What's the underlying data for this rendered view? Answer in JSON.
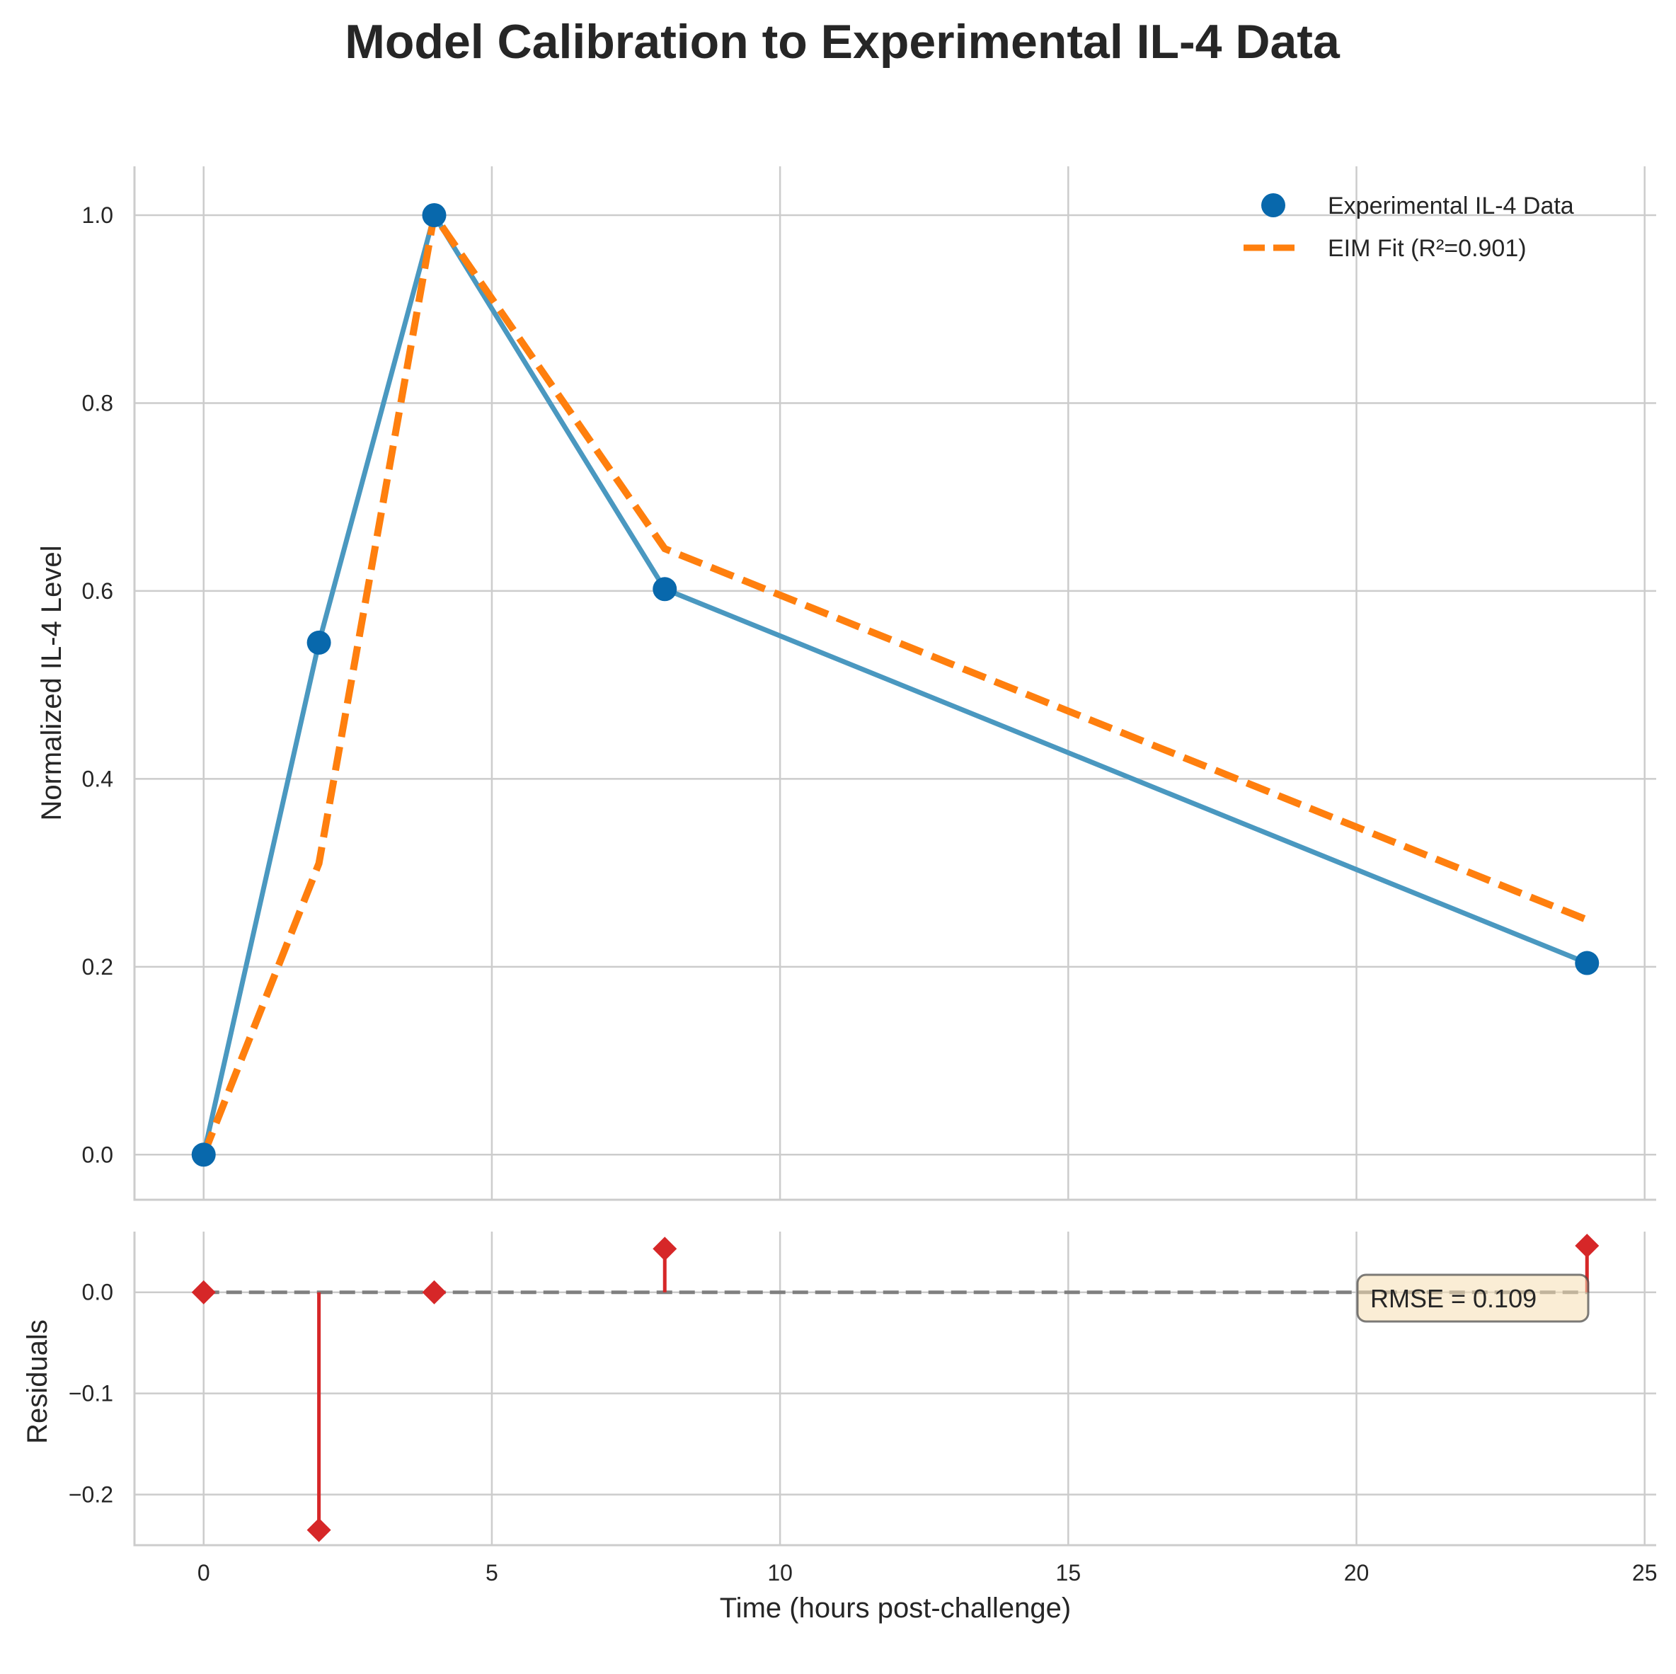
{
  "title": "Model Calibration to Experimental IL-4 Data",
  "colors": {
    "data": "#0868ac",
    "data_line": "#4a98c0",
    "fit": "#ff7f0e",
    "residual": "#d62728",
    "zero_line": "#808080",
    "rmse_box_fill": "#f5deb3",
    "grid": "#cccccc"
  },
  "chart_data": [
    {
      "type": "line",
      "panel": "main",
      "xlabel": "",
      "ylabel": "Normalized IL-4 Level",
      "xlim": [
        -1.2,
        25.2
      ],
      "ylim": [
        -0.048,
        1.052
      ],
      "xticks": [
        0,
        5,
        10,
        15,
        20,
        25
      ],
      "yticks": [
        0.0,
        0.2,
        0.4,
        0.6,
        0.8,
        1.0
      ],
      "ytick_labels": [
        "0.0",
        "0.2",
        "0.4",
        "0.6",
        "0.8",
        "1.0"
      ],
      "grid": true,
      "legend": "top-right",
      "series": [
        {
          "name": "Experimental IL-4 Data",
          "style": "line-markers",
          "x": [
            0,
            2,
            4,
            8,
            24
          ],
          "values": [
            0.0,
            0.545,
            1.0,
            0.602,
            0.204
          ]
        },
        {
          "name": "EIM Fit (R²=0.901)",
          "style": "dashed",
          "x": [
            0,
            2,
            4,
            8,
            24
          ],
          "values": [
            0.0,
            0.31,
            1.0,
            0.645,
            0.25
          ]
        }
      ]
    },
    {
      "type": "scatter",
      "panel": "residuals",
      "xlabel": "Time (hours post-challenge)",
      "ylabel": "Residuals",
      "xlim": [
        -1.2,
        25.2
      ],
      "ylim": [
        -0.25,
        0.06
      ],
      "xticks": [
        0,
        5,
        10,
        15,
        20,
        25
      ],
      "xtick_labels": [
        "0",
        "5",
        "10",
        "15",
        "20",
        "25"
      ],
      "yticks": [
        -0.2,
        -0.1,
        0.0
      ],
      "ytick_labels": [
        "−0.2",
        "−0.1",
        "0.0"
      ],
      "grid": true,
      "series": [
        {
          "style": "stem-diamond",
          "x": [
            0,
            2,
            4,
            8,
            24
          ],
          "values": [
            0.0,
            -0.235,
            0.0,
            0.043,
            0.046
          ]
        }
      ],
      "annotation": "RMSE = 0.109"
    }
  ]
}
